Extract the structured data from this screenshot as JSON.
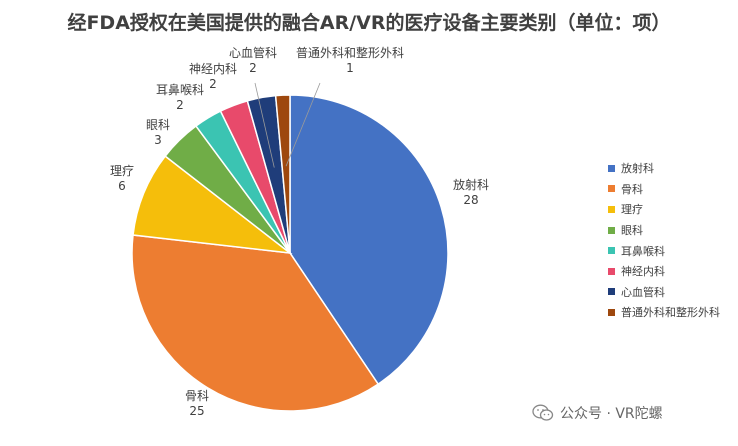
{
  "chart_data": {
    "type": "pie",
    "title": "经FDA授权在美国提供的融合AR/VR的医疗设备主要类别（单位：项）",
    "categories": [
      "放射科",
      "骨科",
      "理疗",
      "眼科",
      "耳鼻喉科",
      "神经内科",
      "心血管科",
      "普通外科和整形外科"
    ],
    "values": [
      28,
      25,
      6,
      3,
      2,
      2,
      2,
      1
    ],
    "colors": [
      "#4472C4",
      "#ED7D31",
      "#F5BE0B",
      "#70AD47",
      "#3BC4B2",
      "#E84A6B",
      "#1F3D7A",
      "#9E480E"
    ],
    "legend_position": "right",
    "data_labels": true
  },
  "watermark": {
    "text": "公众号 · VR陀螺",
    "icon": "wechat-icon"
  }
}
